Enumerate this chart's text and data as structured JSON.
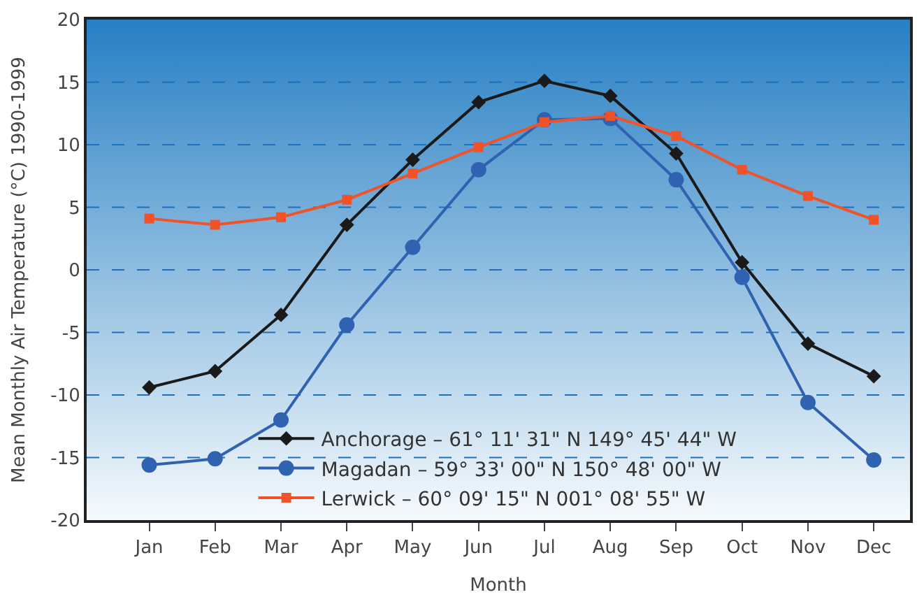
{
  "chart_data": {
    "type": "line",
    "xlabel": "Month",
    "ylabel": "Mean Monthly Air Temperature (°C) 1990-1999",
    "categories": [
      "Jan",
      "Feb",
      "Mar",
      "Apr",
      "May",
      "Jun",
      "Jul",
      "Aug",
      "Sep",
      "Oct",
      "Nov",
      "Dec"
    ],
    "series": [
      {
        "name": "Anchorage – 61° 11' 31\" N 149° 45' 44\" W",
        "color": "#1a1a1a",
        "marker": "diamond",
        "values": [
          -9.4,
          -8.1,
          -3.6,
          3.6,
          8.8,
          13.4,
          15.1,
          13.9,
          9.3,
          0.6,
          -5.9,
          -8.5
        ]
      },
      {
        "name": "Magadan – 59° 33' 00\" N 150° 48' 00\" W",
        "color": "#2f62b0",
        "marker": "circle",
        "values": [
          -15.6,
          -15.1,
          -12.0,
          -4.4,
          1.8,
          8.0,
          12.0,
          12.1,
          7.2,
          -0.6,
          -10.6,
          -15.2
        ]
      },
      {
        "name": "Lerwick – 60° 09' 15\" N 001° 08' 55\" W",
        "color": "#f0522a",
        "marker": "square",
        "values": [
          4.1,
          3.6,
          4.2,
          5.6,
          7.7,
          9.8,
          11.8,
          12.3,
          10.7,
          8.0,
          5.9,
          4.0
        ]
      }
    ],
    "ylim": [
      -20,
      20
    ],
    "yticks": [
      -20,
      -15,
      -10,
      -5,
      0,
      5,
      10,
      15,
      20
    ],
    "grid": "y",
    "legend": "bottom",
    "line_style": "solid"
  }
}
